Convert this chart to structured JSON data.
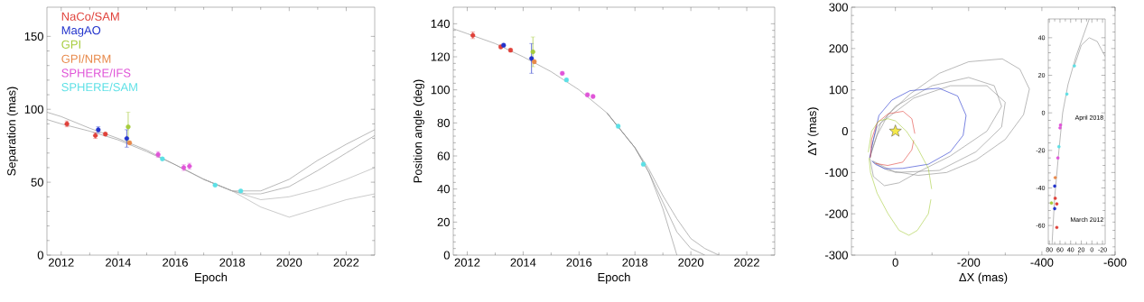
{
  "chart_data": [
    {
      "type": "scatter",
      "xlabel": "Epoch",
      "ylabel": "Separation (mas)",
      "xlim": [
        2011.5,
        2023
      ],
      "ylim": [
        0,
        170
      ],
      "xticks": [
        2012,
        2014,
        2016,
        2018,
        2020,
        2022
      ],
      "yticks": [
        0,
        50,
        100,
        150
      ],
      "legend": "top left",
      "series": [
        {
          "type": "line",
          "color": "#8a8a8a",
          "x": [
            2011.5,
            2012,
            2013,
            2014,
            2015,
            2016,
            2017,
            2018,
            2018.5,
            2019,
            2020,
            2021,
            2022,
            2023
          ],
          "values": [
            93,
            90,
            85,
            79,
            71,
            62,
            52,
            44,
            42,
            42,
            47,
            58,
            70,
            82
          ]
        },
        {
          "type": "line",
          "color": "#8a8a8a",
          "x": [
            2011.5,
            2012,
            2013,
            2014,
            2015,
            2016,
            2017,
            2018,
            2019,
            2020,
            2021,
            2022,
            2023
          ],
          "values": [
            98,
            95,
            87,
            80,
            72,
            62,
            52,
            44,
            44,
            52,
            65,
            76,
            86
          ]
        },
        {
          "type": "line",
          "color": "#a8a8a8",
          "x": [
            2017,
            2018,
            2019,
            2020,
            2021,
            2022,
            2023
          ],
          "values": [
            52,
            44,
            38,
            40,
            45,
            52,
            60
          ]
        },
        {
          "type": "line",
          "color": "#a8a8a8",
          "x": [
            2017,
            2018,
            2019,
            2020,
            2021,
            2022,
            2023
          ],
          "values": [
            52,
            44,
            33,
            26,
            32,
            38,
            42
          ]
        },
        {
          "name": "NaCo/SAM",
          "color": "#e0413a",
          "marker": "circle",
          "x": [
            2012.2,
            2013.2,
            2013.55
          ],
          "values": [
            90,
            82,
            83
          ],
          "errors": [
            2,
            2,
            1
          ]
        },
        {
          "name": "MagAO",
          "color": "#2233cc",
          "marker": "circle",
          "x": [
            2013.3,
            2014.3
          ],
          "values": [
            86,
            80
          ],
          "errors": [
            2,
            6
          ]
        },
        {
          "name": "GPI",
          "color": "#a6cc3c",
          "marker": "circle",
          "x": [
            2014.35
          ],
          "values": [
            88
          ],
          "errors": [
            10
          ]
        },
        {
          "name": "GPI/NRM",
          "color": "#e8894a",
          "marker": "circle",
          "x": [
            2014.4
          ],
          "values": [
            77
          ],
          "errors": [
            1
          ]
        },
        {
          "name": "SPHERE/IFS",
          "color": "#e055d8",
          "marker": "circle",
          "x": [
            2015.4,
            2016.3,
            2016.5
          ],
          "values": [
            69,
            60,
            61
          ],
          "errors": [
            2,
            2,
            2
          ]
        },
        {
          "name": "SPHERE/SAM",
          "color": "#5ce0e6",
          "marker": "circle",
          "x": [
            2015.55,
            2017.4,
            2018.3
          ],
          "values": [
            66,
            48,
            44
          ],
          "errors": [
            1,
            1,
            1
          ]
        }
      ]
    },
    {
      "type": "scatter",
      "xlabel": "Epoch",
      "ylabel": "Position angle (deg)",
      "xlim": [
        2011.5,
        2023
      ],
      "ylim": [
        0,
        150
      ],
      "xticks": [
        2012,
        2014,
        2016,
        2018,
        2020,
        2022
      ],
      "yticks": [
        0,
        20,
        40,
        60,
        80,
        100,
        120,
        140
      ],
      "series": [
        {
          "type": "line",
          "color": "#8a8a8a",
          "x": [
            2011.5,
            2012,
            2013,
            2014,
            2015,
            2016,
            2017,
            2018,
            2018.5,
            2019,
            2019.5,
            2020,
            2020.5
          ],
          "values": [
            137,
            134,
            128,
            120,
            111,
            100,
            86,
            65,
            50,
            32,
            14,
            4,
            0
          ]
        },
        {
          "type": "line",
          "color": "#8a8a8a",
          "x": [
            2017,
            2018,
            2018.5,
            2019,
            2019.5
          ],
          "values": [
            86,
            65,
            50,
            28,
            0
          ]
        },
        {
          "type": "line",
          "color": "#8a8a8a",
          "x": [
            2017,
            2018,
            2018.5,
            2019,
            2019.5,
            2020,
            2020.5,
            2021
          ],
          "values": [
            86,
            65,
            52,
            36,
            22,
            10,
            4,
            0
          ]
        },
        {
          "color": "#e0413a",
          "marker": "circle",
          "x": [
            2012.2,
            2013.2,
            2013.55
          ],
          "values": [
            133,
            126,
            124
          ],
          "errors": [
            2,
            1,
            1
          ]
        },
        {
          "color": "#2233cc",
          "marker": "circle",
          "x": [
            2013.3,
            2014.3
          ],
          "values": [
            127,
            119
          ],
          "errors": [
            1,
            9
          ]
        },
        {
          "color": "#a6cc3c",
          "marker": "circle",
          "x": [
            2014.35
          ],
          "values": [
            123
          ],
          "errors": [
            9
          ]
        },
        {
          "color": "#e8894a",
          "marker": "circle",
          "x": [
            2014.4
          ],
          "values": [
            117
          ],
          "errors": [
            1
          ]
        },
        {
          "color": "#e055d8",
          "marker": "circle",
          "x": [
            2015.4,
            2016.3,
            2016.5
          ],
          "values": [
            110,
            97,
            96
          ],
          "errors": [
            1,
            1,
            1
          ]
        },
        {
          "color": "#5ce0e6",
          "marker": "circle",
          "x": [
            2015.55,
            2017.4,
            2018.3
          ],
          "values": [
            106,
            78,
            55
          ],
          "errors": [
            1,
            1,
            1
          ]
        }
      ]
    },
    {
      "type": "line",
      "xlabel": "ΔX (mas)",
      "ylabel": "ΔY (mas)",
      "xlim": [
        120,
        -600
      ],
      "ylim": [
        -300,
        300
      ],
      "xticks": [
        0,
        -200,
        -400,
        -600
      ],
      "yticks": [
        -300,
        -200,
        -100,
        0,
        100,
        200,
        300
      ],
      "series": [
        {
          "color": "#8a8a8a",
          "x": [
            70,
            50,
            20,
            -40,
            -120,
            -200,
            -292,
            -340,
            -366
          ],
          "values": [
            -64,
            -10,
            40,
            90,
            140,
            168,
            175,
            150,
            102
          ]
        },
        {
          "color": "#8a8a8a",
          "x": [
            -366,
            -350,
            -300,
            -220,
            -140,
            -62,
            20,
            62
          ],
          "values": [
            102,
            40,
            -20,
            -70,
            -100,
            -107,
            -95,
            -74
          ]
        },
        {
          "color": "#8a8a8a",
          "x": [
            70,
            60,
            30,
            -10,
            -60,
            -150,
            -250,
            -290
          ],
          "values": [
            -64,
            -110,
            -132,
            -125,
            -100,
            -60,
            0,
            60
          ]
        },
        {
          "color": "#8a8a8a",
          "x": [
            -290,
            -270,
            -200,
            -100,
            0,
            50,
            66
          ],
          "values": [
            60,
            110,
            130,
            110,
            60,
            10,
            -40
          ]
        },
        {
          "color": "#8a8a8a",
          "x": [
            70,
            40,
            -50,
            -150,
            -250,
            -300
          ],
          "values": [
            -64,
            20,
            80,
            110,
            110,
            70
          ]
        },
        {
          "color": "#8a8a8a",
          "x": [
            -300,
            -290,
            -220,
            -120,
            0,
            62
          ],
          "values": [
            70,
            10,
            -50,
            -95,
            -100,
            -72
          ]
        },
        {
          "color": "#2233cc",
          "x": [
            70,
            60,
            45,
            10,
            -40,
            -119,
            -170,
            -193
          ],
          "values": [
            -64,
            -20,
            38,
            75,
            98,
            104,
            85,
            38
          ]
        },
        {
          "color": "#2233cc",
          "x": [
            -193,
            -185,
            -150,
            -90,
            -20,
            29,
            55,
            64
          ],
          "values": [
            38,
            -10,
            -50,
            -80,
            -90,
            -91,
            -80,
            -72
          ]
        },
        {
          "color": "#e0413a",
          "x": [
            68,
            65,
            50,
            20,
            -21,
            -45,
            -53
          ],
          "values": [
            -64,
            -20,
            20,
            42,
            48,
            30,
            -6
          ]
        },
        {
          "color": "#e0413a",
          "x": [
            -50,
            -45,
            -20,
            21,
            55
          ],
          "values": [
            -22,
            -45,
            -75,
            -83,
            -78
          ]
        },
        {
          "color": "#a6cc3c",
          "x": [
            74,
            65,
            45,
            20,
            0,
            -30,
            -60,
            -90,
            -99
          ],
          "values": [
            -51,
            0,
            25,
            30,
            25,
            0,
            -40,
            -90,
            -140
          ]
        },
        {
          "color": "#a6cc3c",
          "x": [
            -97,
            -90,
            -60,
            -37,
            -10,
            20,
            50,
            68,
            72
          ],
          "values": [
            -165,
            -200,
            -240,
            -252,
            -240,
            -200,
            -150,
            -100,
            -65
          ]
        },
        {
          "type": "scatter",
          "marker": "star",
          "color": "#f5e94a",
          "x": [
            0
          ],
          "values": [
            0
          ]
        }
      ]
    },
    {
      "type": "scatter",
      "xlim": [
        82,
        -25
      ],
      "ylim": [
        -70,
        50
      ],
      "xticks": [
        80,
        60,
        40,
        20,
        0,
        -20
      ],
      "yticks": [
        -60,
        -40,
        -20,
        0,
        20,
        40
      ],
      "annotations": [
        "April 2018",
        "March 2012"
      ],
      "series": [
        {
          "type": "line",
          "color": "#8a8a8a",
          "x": [
            75,
            70,
            62,
            55,
            45,
            30,
            15,
            5
          ],
          "values": [
            -70,
            -45,
            -20,
            0,
            15,
            30,
            42,
            50
          ]
        },
        {
          "type": "line",
          "color": "#8a8a8a",
          "x": [
            33,
            20,
            5,
            -10,
            -25
          ],
          "values": [
            25,
            36,
            40,
            38,
            30
          ]
        },
        {
          "color": "#e0413a",
          "marker": "circle",
          "x": [
            69,
            66,
            66
          ],
          "values": [
            -45.5,
            -48.5,
            -61
          ]
        },
        {
          "color": "#2233cc",
          "marker": "circle",
          "x": [
            70,
            70
          ],
          "values": [
            -39,
            -51
          ]
        },
        {
          "color": "#a6cc3c",
          "marker": "circle",
          "x": [
            76
          ],
          "values": [
            -48
          ]
        },
        {
          "color": "#e8894a",
          "marker": "circle",
          "x": [
            69
          ],
          "values": [
            -34.5
          ]
        },
        {
          "color": "#e055d8",
          "marker": "circle",
          "x": [
            59,
            60,
            64
          ],
          "values": [
            -6.5,
            -8,
            -24
          ]
        },
        {
          "color": "#5ce0e6",
          "marker": "circle",
          "x": [
            33,
            47,
            62
          ],
          "values": [
            25,
            10,
            -18
          ]
        }
      ]
    }
  ]
}
